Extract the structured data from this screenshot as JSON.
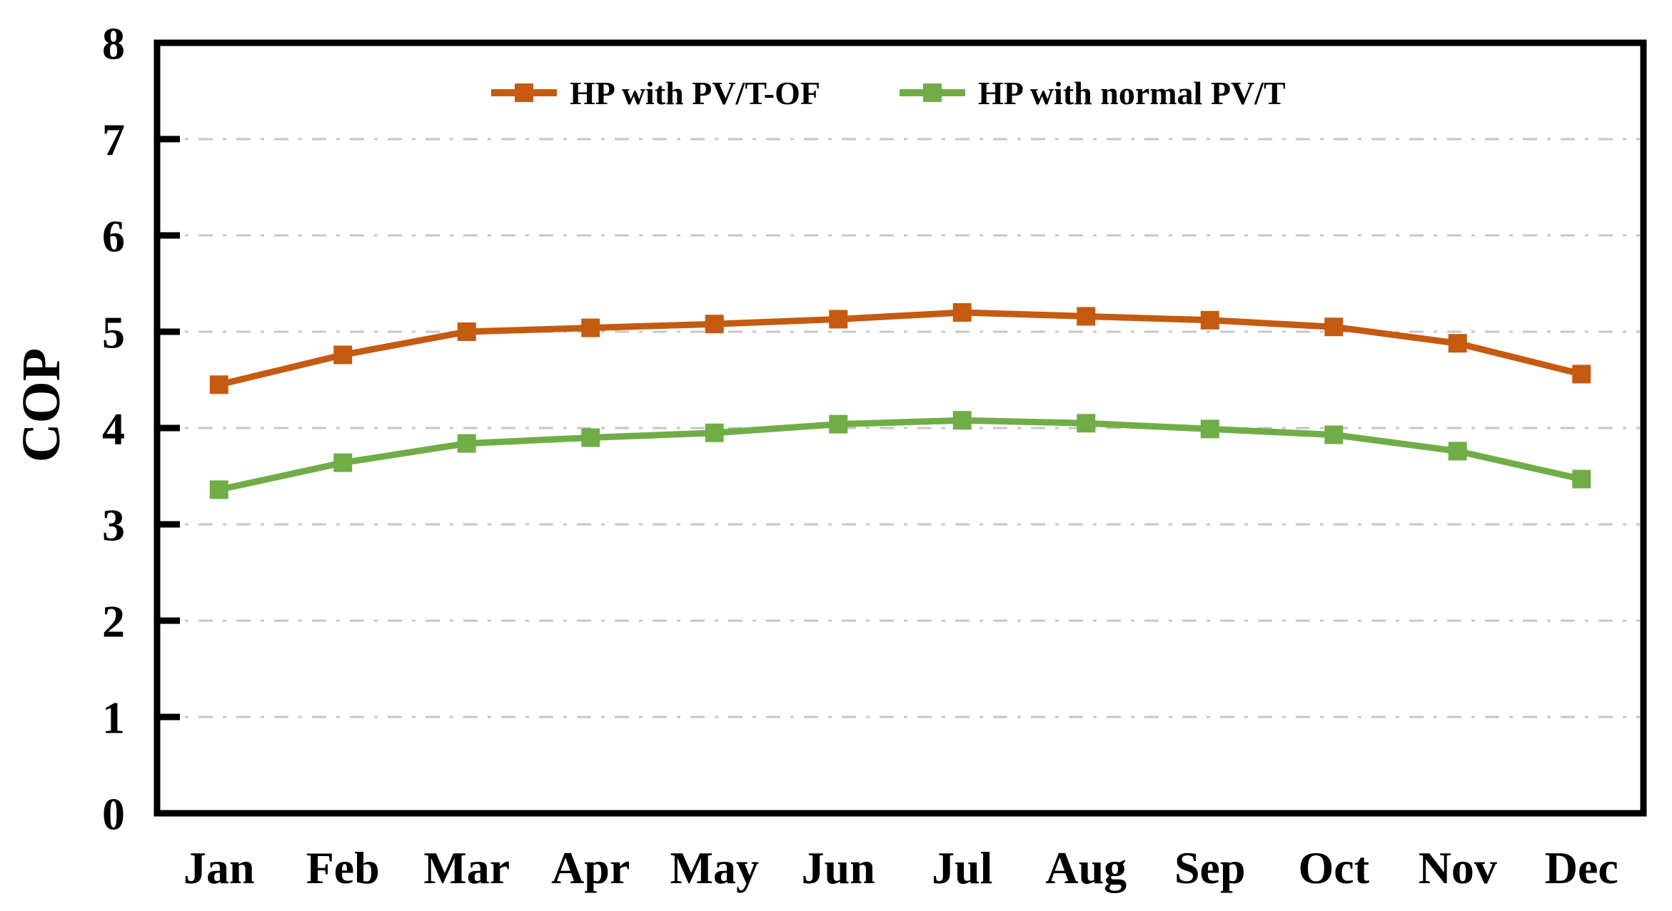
{
  "chart_data": {
    "type": "line",
    "title": "",
    "xlabel": "",
    "ylabel": "COP",
    "ylim": [
      0,
      8
    ],
    "y_ticks": [
      0,
      1,
      2,
      3,
      4,
      5,
      6,
      7,
      8
    ],
    "grid": "horizontal dashed gridlines at each integer",
    "legend_position": "top-center-inside",
    "categories": [
      "Jan",
      "Feb",
      "Mar",
      "Apr",
      "May",
      "Jun",
      "Jul",
      "Aug",
      "Sep",
      "Oct",
      "Nov",
      "Dec"
    ],
    "series": [
      {
        "name": "HP with PV/T-OF",
        "color": "#C55A11",
        "marker": "square",
        "values": [
          4.45,
          4.76,
          5.0,
          5.04,
          5.08,
          5.13,
          5.2,
          5.16,
          5.12,
          5.05,
          4.88,
          4.56
        ]
      },
      {
        "name": "HP with normal PV/T",
        "color": "#70AD47",
        "marker": "square",
        "values": [
          3.36,
          3.64,
          3.84,
          3.9,
          3.95,
          4.04,
          4.08,
          4.05,
          3.99,
          3.93,
          3.76,
          3.47
        ]
      }
    ],
    "axis_color": "#000000",
    "gridline_color": "#c6c6c6",
    "background_color": "#ffffff"
  }
}
